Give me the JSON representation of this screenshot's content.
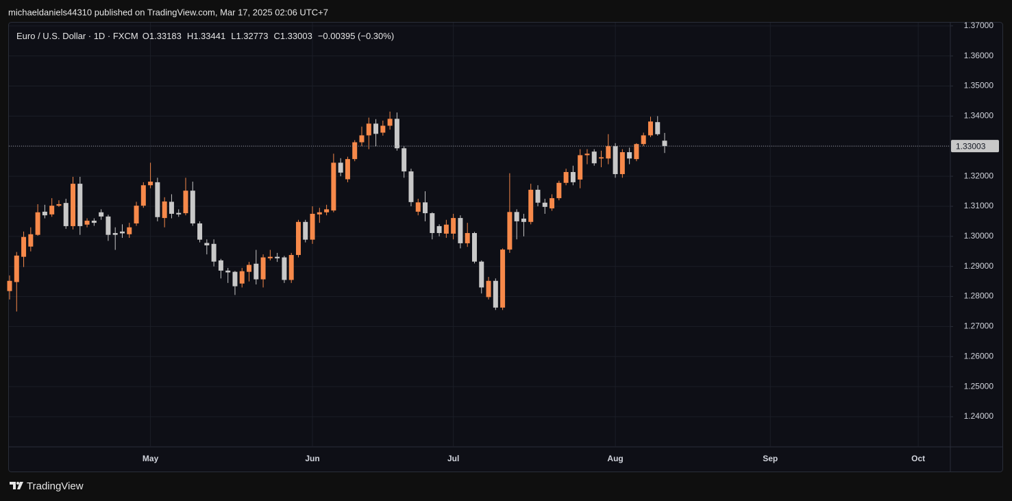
{
  "header": {
    "publisher": "michaeldaniels44310 published on TradingView.com, Mar 17, 2025 02:06 UTC+7"
  },
  "footer": {
    "brand": "TradingView"
  },
  "chart_data": {
    "type": "candlestick",
    "title": "Euro / U.S. Dollar · 1D · FXCM",
    "legend": {
      "open_label": "O",
      "high_label": "H",
      "low_label": "L",
      "close_label": "C",
      "change": "−0.00395 (−0.30%)"
    },
    "up_color": "#f7894a",
    "down_color": "#c8c8c8",
    "grid": true,
    "categories": [
      null,
      null,
      null,
      null,
      null,
      null,
      null,
      null,
      null,
      null,
      null,
      null,
      null,
      null,
      null,
      null,
      null,
      null,
      null,
      null,
      "May",
      null,
      null,
      null,
      null,
      null,
      null,
      null,
      null,
      null,
      null,
      null,
      null,
      null,
      null,
      null,
      null,
      null,
      null,
      null,
      null,
      null,
      null,
      "Jun",
      null,
      null,
      null,
      null,
      null,
      null,
      null,
      null,
      null,
      null,
      null,
      null,
      null,
      null,
      null,
      null,
      null,
      null,
      null,
      "Jul",
      null,
      null,
      null,
      null,
      null,
      null,
      null,
      null,
      null,
      null,
      null,
      null,
      null,
      null,
      null,
      null,
      null,
      null,
      null,
      null,
      null,
      null,
      "Aug",
      null,
      null,
      null,
      null,
      null,
      null,
      null,
      null,
      null,
      null,
      null,
      null,
      null,
      null,
      null,
      null,
      null,
      null,
      null,
      null,
      null,
      "Sep",
      null,
      null,
      null,
      null,
      null,
      null,
      null,
      null,
      null,
      null,
      null,
      null,
      null,
      null,
      null,
      null,
      null,
      null,
      null,
      null,
      "Oct",
      null,
      null,
      null,
      null
    ],
    "open": [
      1.2818,
      1.2848,
      1.2932,
      1.2966,
      1.3005,
      1.3082,
      1.3073,
      1.3102,
      1.3111,
      1.3034,
      1.3175,
      1.3039,
      1.3052,
      1.308,
      1.3066,
      1.3011,
      1.3016,
      1.3007,
      1.3043,
      1.3102,
      1.317,
      1.318,
      1.3061,
      1.3115,
      1.3078,
      1.3077,
      1.3152,
      1.3043,
      1.2978,
      1.2975,
      1.292,
      1.2886,
      1.2882,
      1.2843,
      1.2882,
      1.2909,
      1.2857,
      1.2927,
      1.2932,
      1.293,
      1.2855,
      1.2938,
      1.3048,
      1.2989,
      1.3073,
      1.308,
      1.3086,
      1.3245,
      1.319,
      1.3257,
      1.3313,
      1.3336,
      1.3375,
      1.3345,
      1.3368,
      1.3391,
      1.3293,
      1.3216,
      1.3082,
      1.3113,
      1.3077,
      1.3034,
      1.3009,
      1.3009,
      1.3061,
      1.2977,
      1.3011,
      1.2916,
      1.2798,
      1.2852,
      1.2763,
      1.2956,
      1.3081,
      1.3059,
      1.3048,
      1.3155,
      1.3112,
      1.3093,
      1.3127,
      1.3178,
      1.3214,
      1.3189,
      1.327,
      1.3282,
      1.3259,
      1.3259,
      1.33,
      1.3207,
      1.328,
      1.3257,
      1.3307,
      1.3336,
      1.338,
      1.33183,
      null,
      null,
      null,
      null,
      null,
      null,
      null,
      null,
      null,
      null,
      null,
      null,
      null,
      null,
      null,
      null,
      null,
      null,
      null,
      null,
      null,
      null,
      null,
      null,
      null,
      null,
      null,
      null,
      null,
      null,
      null,
      null,
      null,
      null,
      null,
      null,
      null,
      null,
      null,
      null
    ],
    "high": [
      1.287,
      1.2948,
      1.3016,
      1.303,
      1.3107,
      1.3105,
      1.3127,
      1.312,
      1.3125,
      1.3198,
      1.3198,
      1.306,
      1.306,
      1.309,
      1.3072,
      1.303,
      1.304,
      1.3045,
      1.3115,
      1.318,
      1.3245,
      1.3195,
      1.313,
      1.314,
      1.309,
      1.3195,
      1.3182,
      1.305,
      1.299,
      1.299,
      1.2925,
      1.2895,
      1.2885,
      1.2895,
      1.2915,
      1.2955,
      1.294,
      1.2955,
      1.2945,
      1.2935,
      1.2945,
      1.3055,
      1.3055,
      1.31,
      1.3095,
      1.3105,
      1.3275,
      1.326,
      1.3265,
      1.332,
      1.3365,
      1.3395,
      1.339,
      1.3385,
      1.3415,
      1.3412,
      1.33,
      1.3225,
      1.3125,
      1.315,
      1.308,
      1.304,
      1.3055,
      1.3075,
      1.307,
      1.3045,
      1.3015,
      1.292,
      1.2865,
      1.286,
      1.296,
      1.321,
      1.309,
      1.3075,
      1.3175,
      1.317,
      1.3125,
      1.314,
      1.3185,
      1.3225,
      1.3235,
      1.329,
      1.329,
      1.329,
      1.3285,
      1.334,
      1.331,
      1.329,
      1.3295,
      1.331,
      1.3345,
      1.3398,
      1.34,
      1.33441,
      null,
      null,
      null,
      null,
      null,
      null,
      null,
      null,
      null,
      null,
      null,
      null,
      null,
      null,
      null,
      null,
      null,
      null,
      null,
      null,
      null,
      null,
      null,
      null,
      null,
      null,
      null,
      null,
      null,
      null,
      null,
      null,
      null,
      null,
      null,
      null,
      null,
      null,
      null,
      null
    ],
    "low": [
      1.279,
      1.275,
      1.2898,
      1.295,
      1.3002,
      1.306,
      1.3065,
      1.3098,
      1.3025,
      1.3023,
      1.3005,
      1.303,
      1.3035,
      1.3055,
      1.2985,
      1.2955,
      1.2995,
      1.2995,
      1.3035,
      1.3095,
      1.316,
      1.305,
      1.303,
      1.306,
      1.3065,
      1.307,
      1.3035,
      1.298,
      1.294,
      1.29,
      1.286,
      1.2845,
      1.2805,
      1.283,
      1.285,
      1.284,
      1.283,
      1.292,
      1.2915,
      1.2845,
      1.2845,
      1.293,
      1.298,
      1.2975,
      1.3045,
      1.307,
      1.308,
      1.32,
      1.318,
      1.325,
      1.33,
      1.329,
      1.33,
      1.3335,
      1.3355,
      1.3285,
      1.3195,
      1.31,
      1.307,
      1.305,
      1.299,
      1.3,
      1.2995,
      1.299,
      1.296,
      1.2965,
      1.291,
      1.281,
      1.279,
      1.2755,
      1.2755,
      1.2945,
      1.299,
      1.3,
      1.304,
      1.31,
      1.3075,
      1.3085,
      1.312,
      1.317,
      1.317,
      1.316,
      1.324,
      1.3235,
      1.323,
      1.324,
      1.3195,
      1.3195,
      1.324,
      1.325,
      1.33,
      1.333,
      1.3335,
      1.32773,
      null,
      null,
      null,
      null,
      null,
      null,
      null,
      null,
      null,
      null,
      null,
      null,
      null,
      null,
      null,
      null,
      null,
      null,
      null,
      null,
      null,
      null,
      null,
      null,
      null,
      null,
      null,
      null,
      null,
      null,
      null,
      null,
      null,
      null,
      null,
      null,
      null,
      null,
      null,
      null
    ],
    "close": [
      1.2852,
      1.2936,
      1.2998,
      1.3007,
      1.308,
      1.307,
      1.3102,
      1.3107,
      1.3034,
      1.3175,
      1.3034,
      1.3052,
      1.3045,
      1.3066,
      1.3005,
      1.3005,
      1.301,
      1.303,
      1.3102,
      1.317,
      1.3182,
      1.3064,
      1.3116,
      1.3075,
      1.3073,
      1.3152,
      1.3043,
      1.2989,
      1.297,
      1.2916,
      1.2886,
      1.288,
      1.2834,
      1.2884,
      1.2905,
      1.2857,
      1.293,
      1.2932,
      1.2927,
      1.2855,
      1.2938,
      1.3048,
      1.2989,
      1.3075,
      1.308,
      1.309,
      1.3245,
      1.3212,
      1.3257,
      1.3313,
      1.3336,
      1.3375,
      1.3341,
      1.3368,
      1.3391,
      1.3293,
      1.3216,
      1.3114,
      1.3113,
      1.3077,
      1.3011,
      1.3011,
      1.3039,
      1.3061,
      1.2977,
      1.3011,
      1.2916,
      1.283,
      1.2852,
      1.2763,
      1.2956,
      1.3081,
      1.305,
      1.3048,
      1.3155,
      1.3112,
      1.3098,
      1.3127,
      1.3178,
      1.3214,
      1.318,
      1.327,
      1.3275,
      1.3243,
      1.3263,
      1.33,
      1.3207,
      1.328,
      1.3259,
      1.3307,
      1.3336,
      1.3382,
      1.33398,
      1.33003,
      null,
      null,
      null,
      null,
      null,
      null,
      null,
      null,
      null,
      null,
      null,
      null,
      null,
      null,
      null,
      null,
      null,
      null,
      null,
      null,
      null,
      null,
      null,
      null,
      null,
      null,
      null,
      null,
      null,
      null,
      null,
      null,
      null,
      null,
      null,
      null,
      null,
      null,
      null,
      null
    ],
    "ylim": [
      1.2302,
      1.3711
    ],
    "yticks": [
      {
        "value": 1.24,
        "label": "1.24000"
      },
      {
        "value": 1.25,
        "label": "1.25000"
      },
      {
        "value": 1.26,
        "label": "1.26000"
      },
      {
        "value": 1.27,
        "label": "1.27000"
      },
      {
        "value": 1.28,
        "label": "1.28000"
      },
      {
        "value": 1.29,
        "label": "1.29000"
      },
      {
        "value": 1.3,
        "label": "1.30000"
      },
      {
        "value": 1.31,
        "label": "1.31000"
      },
      {
        "value": 1.32,
        "label": "1.32000"
      },
      {
        "value": 1.33,
        "label": "1.33000"
      },
      {
        "value": 1.34,
        "label": "1.34000"
      },
      {
        "value": 1.35,
        "label": "1.35000"
      },
      {
        "value": 1.36,
        "label": "1.36000"
      },
      {
        "value": 1.37,
        "label": "1.37000"
      }
    ]
  }
}
